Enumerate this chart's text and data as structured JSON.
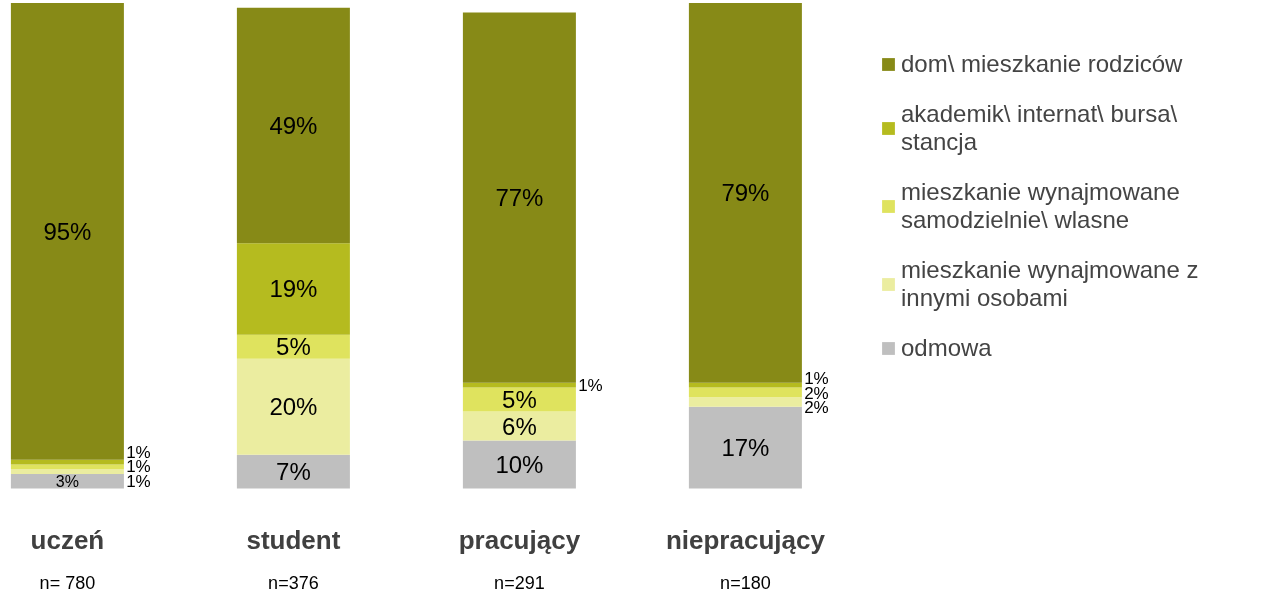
{
  "chart_data": {
    "type": "bar",
    "stacked": true,
    "categories": [
      "uczeń",
      "student",
      "pracujący",
      "niepracujący"
    ],
    "series": [
      {
        "name": "odmowa",
        "color": "#bfbfbf",
        "values": [
          3,
          7,
          10,
          17
        ],
        "value_labels": [
          "3%",
          "7%",
          "10%",
          "17%"
        ]
      },
      {
        "name": "mieszkanie wynajmowane z innymi osobami",
        "color": "#ebeda0",
        "values": [
          1,
          20,
          6,
          2
        ],
        "value_labels": [
          "1%",
          "20%",
          "6%",
          "2%"
        ]
      },
      {
        "name": "mieszkanie wynajmowane samodzielnie\\ wlasne",
        "color": "#dfe35e",
        "values": [
          1,
          5,
          5,
          2
        ],
        "value_labels": [
          "1%",
          "5%",
          "5%",
          "2%"
        ]
      },
      {
        "name": "akademik\\ internat\\ bursa\\ stancja",
        "color": "#b5bb1f",
        "values": [
          1,
          19,
          1,
          1
        ],
        "value_labels": [
          "1%",
          "19%",
          "1%",
          "1%"
        ]
      },
      {
        "name": "dom\\ mieszkanie rodziców",
        "color": "#878a17",
        "values": [
          95,
          49,
          77,
          79
        ],
        "value_labels": [
          "95%",
          "49%",
          "77%",
          "79%"
        ]
      }
    ],
    "annotations": [
      "n= 780",
      "n=376",
      "n=291",
      "n=180"
    ],
    "legend": "right",
    "grid": false
  }
}
